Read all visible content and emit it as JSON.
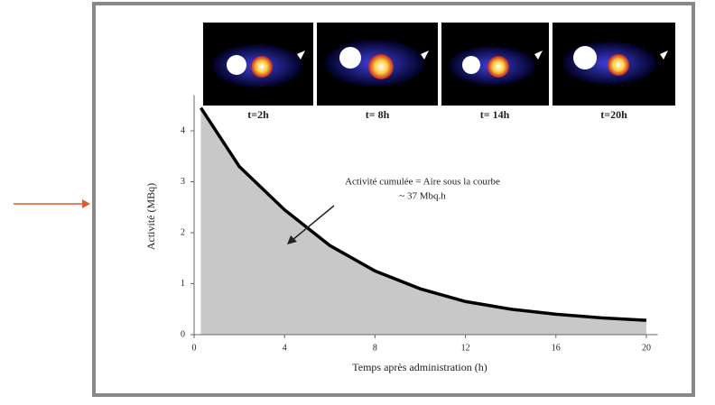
{
  "chart_data": {
    "type": "area",
    "x_label": "Temps après administration (h)",
    "y_label": "Activité (MBq)",
    "annotation": [
      "Activité cumulée = Aire sous la courbe",
      "~ 37 Mbq.h"
    ],
    "image_labels": [
      "t=2h",
      "t= 8h",
      "t= 14h",
      "t=20h"
    ],
    "x": [
      0.3,
      2,
      4,
      6,
      8,
      10,
      12,
      14,
      16,
      18,
      20
    ],
    "values": [
      4.45,
      3.3,
      2.45,
      1.75,
      1.25,
      0.9,
      0.65,
      0.5,
      0.4,
      0.33,
      0.28
    ],
    "color": "#000000",
    "fill": "#c8c8c8",
    "xlim": [
      0,
      20.5
    ],
    "xticks": [
      0,
      4,
      8,
      12,
      16,
      20
    ],
    "ylim": [
      0,
      4.7
    ],
    "yticks": [
      0,
      1,
      2,
      3,
      4
    ]
  }
}
